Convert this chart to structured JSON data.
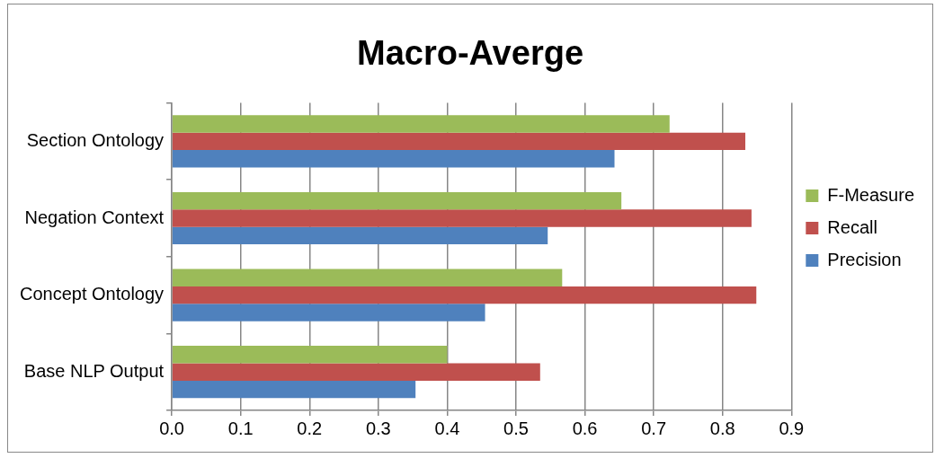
{
  "chart_data": {
    "type": "bar",
    "orientation": "horizontal",
    "title": "Macro-Averge",
    "categories": [
      "Section Ontology",
      "Negation Context",
      "Concept Ontology",
      "Base NLP Output"
    ],
    "series": [
      {
        "name": "F-Measure",
        "color": "#9bbb59",
        "values": [
          0.723,
          0.653,
          0.567,
          0.4
        ]
      },
      {
        "name": "Recall",
        "color": "#c0504d",
        "values": [
          0.833,
          0.842,
          0.849,
          0.535
        ]
      },
      {
        "name": "Precision",
        "color": "#4f81bd",
        "values": [
          0.643,
          0.546,
          0.455,
          0.354
        ]
      }
    ],
    "xlim": [
      0,
      0.9
    ],
    "xticks": [
      {
        "value": 0,
        "label": "0.0"
      },
      0.1,
      0.2,
      0.3,
      0.4,
      0.5,
      0.6,
      0.7,
      0.8,
      0.9
    ],
    "grid": "x",
    "legend": "right"
  }
}
